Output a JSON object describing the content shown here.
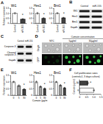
{
  "chart_data": [
    {
      "panel": "A",
      "type": "bar",
      "title": "Wt1",
      "ylabel": "Relative expression",
      "categories": [
        "Control",
        "miR-155"
      ],
      "values": [
        1,
        0.42
      ],
      "errors": [
        0.07,
        0.05
      ],
      "colors": [
        "#ffffff",
        "#404040"
      ],
      "ylim": [
        0,
        1.5
      ],
      "yticks": [
        0,
        0.5,
        {
          "value": 1,
          "label": "1.0"
        },
        1.5
      ],
      "annotations": [
        {
          "category": "miR-155",
          "text": "*"
        }
      ]
    },
    {
      "panel": "A",
      "type": "bar",
      "title": "Hes1",
      "categories": [
        "Control",
        "miR-155"
      ],
      "values": [
        1,
        0.5
      ],
      "errors": [
        0.08,
        0.06
      ],
      "colors": [
        "#ffffff",
        "#404040"
      ],
      "ylim": [
        0,
        1.5
      ],
      "yticks": [
        0,
        0.5,
        {
          "value": 1,
          "label": "1.0"
        },
        1.5
      ],
      "annotations": [
        {
          "category": "miR-155",
          "text": "*"
        }
      ]
    },
    {
      "panel": "A",
      "type": "bar",
      "title": "Bmi1",
      "categories": [
        "Control",
        "miR-155"
      ],
      "values": [
        1,
        0.55
      ],
      "errors": [
        0.06,
        0.05
      ],
      "colors": [
        "#ffffff",
        "#404040"
      ],
      "ylim": [
        0,
        1.5
      ],
      "yticks": [
        0,
        0.5,
        {
          "value": 1,
          "label": "1.0"
        },
        1.5
      ],
      "annotations": [
        {
          "category": "miR-155",
          "text": "*"
        }
      ]
    },
    {
      "panel": "E",
      "type": "bar",
      "title": "Wt1",
      "ylabel": "Relative expression",
      "categories": [
        "0",
        "5",
        "30"
      ],
      "values": [
        1,
        0.72,
        0.45
      ],
      "errors": [
        0.06,
        0.06,
        0.05
      ],
      "colors": [
        "#ffffff",
        "#a0a0a0",
        "#404040"
      ],
      "ylim": [
        0,
        1.5
      ],
      "yticks": [
        0,
        0.5,
        {
          "value": 1,
          "label": "1.0"
        },
        1.5
      ],
      "annotations": [
        {
          "category": "30",
          "text": "*"
        }
      ]
    },
    {
      "panel": "E",
      "type": "bar",
      "title": "Hes1",
      "xlabel": "Cumate (μg/ml)",
      "categories": [
        "0",
        "5",
        "30"
      ],
      "values": [
        1,
        0.65,
        0.5
      ],
      "errors": [
        0.07,
        0.05,
        0.05
      ],
      "colors": [
        "#ffffff",
        "#a0a0a0",
        "#404040"
      ],
      "ylim": [
        0,
        1.5
      ],
      "yticks": [
        0,
        0.5,
        {
          "value": 1,
          "label": "1.0"
        },
        1.5
      ],
      "annotations": [
        {
          "category": "30",
          "text": "*"
        }
      ]
    },
    {
      "panel": "E",
      "type": "bar",
      "title": "Bmi1",
      "categories": [
        "0",
        "5",
        "30"
      ],
      "values": [
        1,
        0.75,
        0.55
      ],
      "errors": [
        0.05,
        0.06,
        0.05
      ],
      "colors": [
        "#ffffff",
        "#a0a0a0",
        "#404040"
      ],
      "ylim": [
        0,
        1.5
      ],
      "yticks": [
        0,
        0.5,
        {
          "value": 1,
          "label": "1.0"
        },
        1.5
      ],
      "annotations": [
        {
          "category": "30",
          "text": "*"
        }
      ]
    },
    {
      "panel": "F",
      "type": "bar",
      "orientation": "horizontal",
      "title": [
        "Cell proliferation rates",
        "(control=1, 3 days culture)"
      ],
      "ylabel": "Cumate (μg/ml)",
      "categories": [
        "0",
        "30"
      ],
      "values": [
        1,
        0.58
      ],
      "errors": [
        0.04,
        0.05
      ],
      "colors": [
        "#ffffff",
        "#404040"
      ],
      "xlim": [
        0,
        1.5
      ],
      "xticks": [
        0,
        0.5,
        {
          "value": 1,
          "label": "1.0"
        },
        1.5
      ],
      "annotations": [
        {
          "category": "30",
          "text": "*"
        }
      ]
    }
  ],
  "blots": [
    {
      "panel": "B",
      "columns": [
        "Control",
        "miR-155"
      ],
      "rows": [
        "Wt1",
        "Hes1",
        "Bmi1",
        "Gapdh"
      ]
    },
    {
      "panel": "C",
      "columns": [
        "Control",
        "miR-155"
      ],
      "rows": [
        "Caspase-3",
        "Cleaved caspase-3",
        "Gapdh"
      ]
    }
  ],
  "images": {
    "panel": "D",
    "header": "Cumate concentration",
    "columns": [
      "NTC",
      "5μg/ml",
      "30μg/ml"
    ],
    "rows": [
      "Bright",
      "GFP"
    ]
  }
}
